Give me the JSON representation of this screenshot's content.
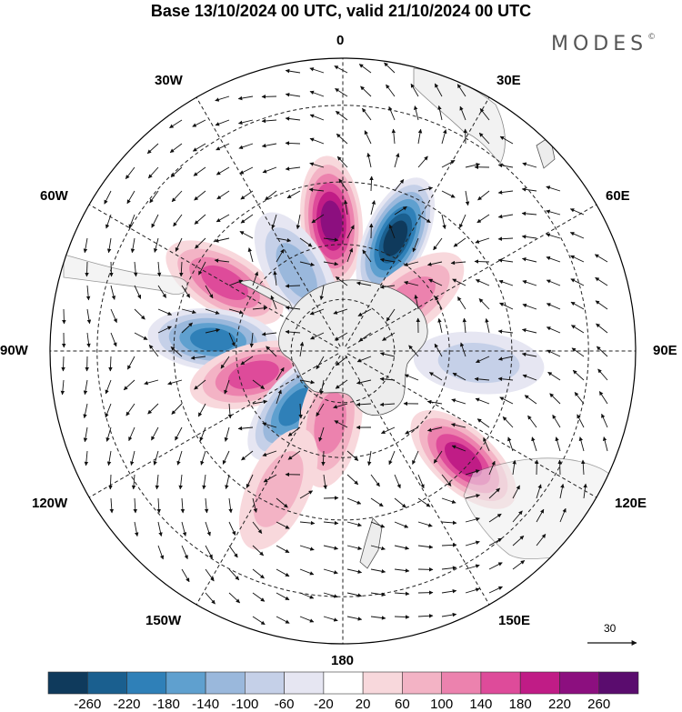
{
  "title": "Base 13/10/2024 00 UTC, valid 21/10/2024 00 UTC",
  "brand": "MODES",
  "brand_mark": "©",
  "longitude_labels": {
    "n0": "0",
    "n30e": "30E",
    "n60e": "60E",
    "n90e": "90E",
    "n120e": "120E",
    "n150e": "150E",
    "n180": "180",
    "n150w": "150W",
    "n120w": "120W",
    "n90w": "90W",
    "n60w": "60W",
    "n30w": "30W"
  },
  "vector_scale_label": "30",
  "colorbar": {
    "labels": [
      "-260",
      "-220",
      "-180",
      "-140",
      "-100",
      "-60",
      "-20",
      "20",
      "60",
      "100",
      "140",
      "180",
      "220",
      "260"
    ],
    "colors": [
      "#0f3a5c",
      "#1a5f8f",
      "#2f80b8",
      "#5fa0cf",
      "#9ab8dc",
      "#c5d0e8",
      "#e6e6f2",
      "#ffffff",
      "#f8d8dc",
      "#f3b3c5",
      "#ec82ae",
      "#de4b9a",
      "#c01c86",
      "#8c0f7f",
      "#5a0c6e"
    ]
  },
  "anomaly_centers": [
    {
      "lon": 355,
      "lat": -42,
      "value": 240
    },
    {
      "lon": 25,
      "lat": -44,
      "value": -260
    },
    {
      "lon": 52,
      "lat": -58,
      "value": 120
    },
    {
      "lon": 300,
      "lat": -40,
      "value": 170
    },
    {
      "lon": 275,
      "lat": -42,
      "value": -200
    },
    {
      "lon": 255,
      "lat": -55,
      "value": 160
    },
    {
      "lon": 220,
      "lat": -62,
      "value": -180
    },
    {
      "lon": 190,
      "lat": -62,
      "value": 110
    },
    {
      "lon": 205,
      "lat": -35,
      "value": 80
    },
    {
      "lon": 132,
      "lat": -32,
      "value": 200
    },
    {
      "lon": 95,
      "lat": -40,
      "value": -80
    },
    {
      "lon": 330,
      "lat": -55,
      "value": -100
    }
  ]
}
